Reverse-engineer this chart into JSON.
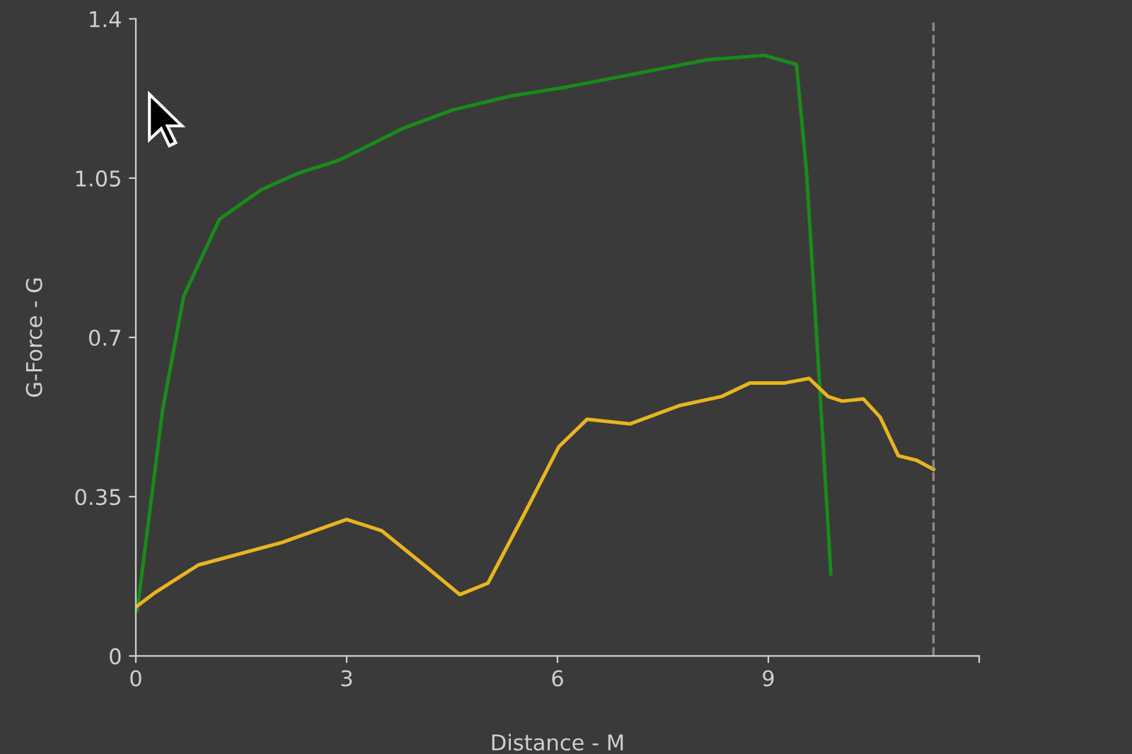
{
  "chart_data": {
    "type": "line",
    "xlabel": "Distance - M",
    "ylabel": "G-Force - G",
    "xlim": [
      0,
      12
    ],
    "xticks": [
      0,
      3,
      6,
      9,
      {
        "value": 12,
        "label": null
      }
    ],
    "ylim": [
      0,
      1.4
    ],
    "yticks": [
      0,
      0.35,
      0.7,
      1.05,
      1.4
    ],
    "grid": false,
    "legend": false,
    "marker": "none",
    "line_style": "solid",
    "ref_lines": [
      {
        "axis": "x",
        "value": 11.35,
        "color": "#8a8a8a",
        "line_style": "dashed"
      }
    ],
    "series": [
      {
        "color": "#1a8a1a",
        "x": [
          0.02,
          0.38,
          0.68,
          1.19,
          1.79,
          2.3,
          2.9,
          3.81,
          4.51,
          5.32,
          6.12,
          7.13,
          8.13,
          8.94,
          9.4,
          9.54,
          9.7,
          9.89
        ],
        "values": [
          0.1,
          0.54,
          0.79,
          0.96,
          1.025,
          1.06,
          1.09,
          1.16,
          1.2,
          1.23,
          1.25,
          1.28,
          1.31,
          1.32,
          1.3,
          1.07,
          0.67,
          0.18
        ]
      },
      {
        "color": "#e8b520",
        "x": [
          0.02,
          0.28,
          0.89,
          2.09,
          3.0,
          3.5,
          4.1,
          4.61,
          5.01,
          5.52,
          6.02,
          6.42,
          7.03,
          7.73,
          8.33,
          8.74,
          9.24,
          9.58,
          9.85,
          10.05,
          10.35,
          10.59,
          10.85,
          11.11,
          11.35
        ],
        "values": [
          0.11,
          0.14,
          0.2,
          0.25,
          0.3,
          0.275,
          0.2,
          0.135,
          0.16,
          0.31,
          0.46,
          0.52,
          0.51,
          0.55,
          0.57,
          0.6,
          0.6,
          0.61,
          0.57,
          0.56,
          0.565,
          0.525,
          0.44,
          0.43,
          0.41
        ]
      }
    ]
  }
}
